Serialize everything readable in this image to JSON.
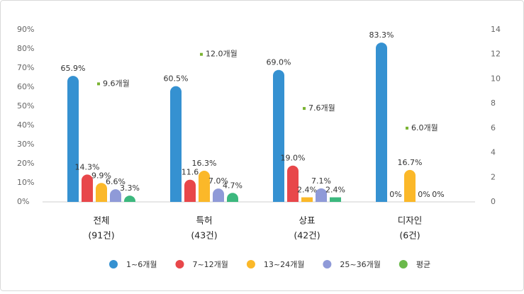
{
  "chart_data": {
    "type": "bar",
    "categories": [
      "전체",
      "특허",
      "상표",
      "디자인"
    ],
    "category_counts": [
      "(91건)",
      "(43건)",
      "(42건)",
      "(6건)"
    ],
    "series": [
      {
        "name": "1~6개월",
        "color": "#3591d1",
        "values": [
          65.9,
          60.5,
          69.0,
          83.3
        ],
        "value_labels": [
          "65.9%",
          "60.5%",
          "69.0%",
          "83.3%"
        ]
      },
      {
        "name": "7~12개월",
        "color": "#e8474a",
        "values": [
          14.3,
          11.6,
          19.0,
          0
        ],
        "value_labels": [
          "14.3%",
          "11.6",
          "19.0%",
          "0%"
        ]
      },
      {
        "name": "13~24개월",
        "color": "#fbb829",
        "values": [
          9.9,
          16.3,
          2.4,
          16.7
        ],
        "value_labels": [
          "9.9%",
          "16.3%",
          "2.4%",
          "16.7%"
        ]
      },
      {
        "name": "25~36개월",
        "color": "#8f9ad8",
        "values": [
          6.6,
          7.0,
          7.1,
          0
        ],
        "value_labels": [
          "6.6%",
          "7.0%",
          "7.1%",
          "0%"
        ]
      },
      {
        "color": "#3cb87e",
        "values": [
          3.3,
          4.7,
          2.4,
          0
        ],
        "value_labels": [
          "3.3%",
          "4.7%",
          "2.4%",
          "0%"
        ]
      },
      {
        "name": "평균",
        "color": "#6ab94a",
        "marker_color": "#7ab332",
        "axis": "y2",
        "type": "scatter",
        "values": [
          9.6,
          12.0,
          7.6,
          6.0
        ],
        "value_labels": [
          "9.6개월",
          "12.0개월",
          "7.6개월",
          "6.0개월"
        ]
      }
    ],
    "ylim": [
      0,
      90
    ],
    "yticks": [
      {
        "value": 0,
        "label": "0%"
      },
      {
        "value": 10,
        "label": "10%"
      },
      {
        "value": 20,
        "label": "20%"
      },
      {
        "value": 30,
        "label": "30%"
      },
      {
        "value": 40,
        "label": "40%"
      },
      {
        "value": 50,
        "label": "50%"
      },
      {
        "value": 60,
        "label": "60%"
      },
      {
        "value": 70,
        "label": "70%"
      },
      {
        "value": 80,
        "label": "80%"
      },
      {
        "value": 90,
        "label": "90%"
      }
    ],
    "y2lim": [
      0,
      14
    ],
    "y2ticks": [
      0,
      2,
      4,
      6,
      8,
      10,
      12,
      14
    ],
    "grid": false,
    "legend": "bottom"
  }
}
